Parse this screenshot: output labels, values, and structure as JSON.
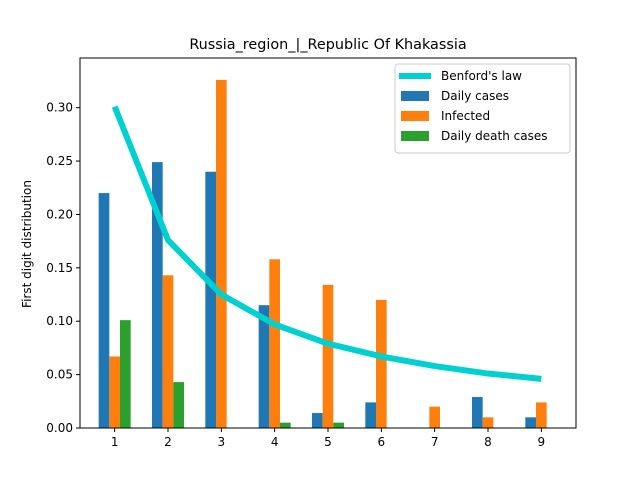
{
  "chart_data": {
    "type": "bar",
    "title": "Russia_region_|_Republic Of Khakassia",
    "xlabel": "",
    "ylabel": "First digit distribution",
    "categories": [
      "1",
      "2",
      "3",
      "4",
      "5",
      "6",
      "7",
      "8",
      "9"
    ],
    "xlim": [
      0.35,
      9.65
    ],
    "ylim": [
      0,
      0.3465
    ],
    "yticks": [
      "0.00",
      "0.05",
      "0.10",
      "0.15",
      "0.20",
      "0.25",
      "0.30"
    ],
    "grid": false,
    "legend_position": "top-right",
    "line_series": {
      "name": "Benford's law",
      "color": "#00d0d0",
      "values": [
        0.301,
        0.176,
        0.125,
        0.097,
        0.079,
        0.067,
        0.058,
        0.051,
        0.046
      ]
    },
    "series": [
      {
        "name": "Daily cases",
        "color": "#1f77b4",
        "values": [
          0.22,
          0.249,
          0.24,
          0.115,
          0.014,
          0.024,
          0.0,
          0.029,
          0.01
        ]
      },
      {
        "name": "Infected",
        "color": "#ff7f0e",
        "values": [
          0.067,
          0.143,
          0.326,
          0.158,
          0.134,
          0.12,
          0.02,
          0.01,
          0.024
        ]
      },
      {
        "name": "Daily death cases",
        "color": "#2ca02c",
        "values": [
          0.101,
          0.043,
          0.0,
          0.005,
          0.005,
          0.0,
          0.0,
          0.0,
          0.0
        ]
      }
    ]
  }
}
